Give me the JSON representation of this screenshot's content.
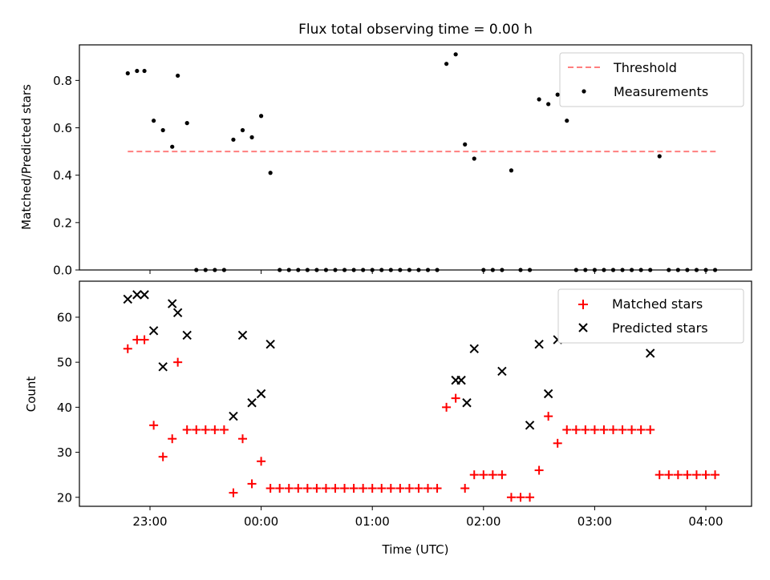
{
  "title": "Flux total observing time = 0.00 h",
  "chart_data": [
    {
      "type": "scatter",
      "panel": "top",
      "ylabel": "Matched/Predicted stars",
      "xlabel": "",
      "ylim": [
        0,
        0.95
      ],
      "yticks": [
        0.0,
        0.2,
        0.4,
        0.6,
        0.8
      ],
      "ytick_labels": [
        "0.0",
        "0.2",
        "0.4",
        "0.6",
        "0.8"
      ],
      "legend_position": "top-right",
      "grid": false,
      "threshold": {
        "name": "Threshold",
        "value": 0.5,
        "x_start": "22:48",
        "x_end": "04:07",
        "color": "#ff7f7f"
      },
      "series": [
        {
          "name": "Measurements",
          "color": "#000000",
          "marker": "dot",
          "x": [
            "22:48",
            "22:53",
            "22:57",
            "23:02",
            "23:07",
            "23:12",
            "23:15",
            "23:20",
            "23:25",
            "23:30",
            "23:35",
            "23:40",
            "23:45",
            "23:50",
            "23:55",
            "00:00",
            "00:05",
            "00:10",
            "00:15",
            "00:20",
            "00:25",
            "00:30",
            "00:35",
            "00:40",
            "00:45",
            "00:50",
            "00:55",
            "01:00",
            "01:05",
            "01:10",
            "01:15",
            "01:20",
            "01:25",
            "01:30",
            "01:35",
            "01:40",
            "01:45",
            "01:50",
            "01:55",
            "02:00",
            "02:05",
            "02:10",
            "02:15",
            "02:20",
            "02:25",
            "02:30",
            "02:35",
            "02:40",
            "02:45",
            "02:50",
            "02:55",
            "03:00",
            "03:05",
            "03:10",
            "03:15",
            "03:20",
            "03:25",
            "03:30",
            "03:35",
            "03:40",
            "03:45",
            "03:50",
            "03:55",
            "04:00",
            "04:05"
          ],
          "y": [
            0.83,
            0.84,
            0.84,
            0.63,
            0.59,
            0.52,
            0.82,
            0.62,
            0.0,
            0.0,
            0.0,
            0.0,
            0.55,
            0.59,
            0.56,
            0.65,
            0.41,
            0.0,
            0.0,
            0.0,
            0.0,
            0.0,
            0.0,
            0.0,
            0.0,
            0.0,
            0.0,
            0.0,
            0.0,
            0.0,
            0.0,
            0.0,
            0.0,
            0.0,
            0.0,
            0.87,
            0.91,
            0.53,
            0.47,
            0.0,
            0.0,
            0.0,
            0.42,
            0.0,
            0.0,
            0.72,
            0.7,
            0.74,
            0.63,
            0.0,
            0.0,
            0.0,
            0.0,
            0.0,
            0.0,
            0.0,
            0.0,
            0.0,
            0.48,
            0.0,
            0.0,
            0.0,
            0.0,
            0.0,
            0.0
          ]
        }
      ]
    },
    {
      "type": "scatter",
      "panel": "bottom",
      "xlabel": "Time (UTC)",
      "ylabel": "Count",
      "ylim": [
        18,
        68
      ],
      "yticks": [
        20,
        30,
        40,
        50,
        60
      ],
      "ytick_labels": [
        "20",
        "30",
        "40",
        "50",
        "60"
      ],
      "xticks": [
        "23:00",
        "00:00",
        "01:00",
        "02:00",
        "03:00",
        "04:00"
      ],
      "legend_position": "top-right",
      "grid": false,
      "series": [
        {
          "name": "Matched stars",
          "color": "#ff0000",
          "marker": "plus",
          "x": [
            "22:48",
            "22:53",
            "22:57",
            "23:02",
            "23:07",
            "23:12",
            "23:15",
            "23:20",
            "23:25",
            "23:30",
            "23:35",
            "23:40",
            "23:45",
            "23:50",
            "23:55",
            "00:00",
            "00:05",
            "00:10",
            "00:15",
            "00:20",
            "00:25",
            "00:30",
            "00:35",
            "00:40",
            "00:45",
            "00:50",
            "00:55",
            "01:00",
            "01:05",
            "01:10",
            "01:15",
            "01:20",
            "01:25",
            "01:30",
            "01:35",
            "01:40",
            "01:45",
            "01:50",
            "01:55",
            "02:00",
            "02:05",
            "02:10",
            "02:15",
            "02:20",
            "02:25",
            "02:30",
            "02:35",
            "02:40",
            "02:45",
            "02:50",
            "02:55",
            "03:00",
            "03:05",
            "03:10",
            "03:15",
            "03:20",
            "03:25",
            "03:30",
            "03:35",
            "03:40",
            "03:45",
            "03:50",
            "03:55",
            "04:00",
            "04:05"
          ],
          "y": [
            53,
            55,
            55,
            36,
            29,
            33,
            50,
            35,
            35,
            35,
            35,
            35,
            21,
            33,
            23,
            28,
            22,
            22,
            22,
            22,
            22,
            22,
            22,
            22,
            22,
            22,
            22,
            22,
            22,
            22,
            22,
            22,
            22,
            22,
            22,
            40,
            42,
            22,
            25,
            25,
            25,
            25,
            20,
            20,
            20,
            26,
            38,
            32,
            35,
            35,
            35,
            35,
            35,
            35,
            35,
            35,
            35,
            35,
            25,
            25,
            25,
            25,
            25,
            25,
            25
          ]
        },
        {
          "name": "Predicted stars",
          "color": "#000000",
          "marker": "x",
          "x": [
            "22:48",
            "22:53",
            "22:57",
            "23:02",
            "23:07",
            "23:12",
            "23:15",
            "23:20",
            "23:45",
            "23:50",
            "23:55",
            "00:00",
            "00:05",
            "01:45",
            "01:48",
            "01:51",
            "01:55",
            "02:10",
            "02:25",
            "02:30",
            "02:35",
            "02:40",
            "03:30"
          ],
          "y": [
            64,
            65,
            65,
            57,
            49,
            63,
            61,
            56,
            38,
            56,
            41,
            43,
            54,
            46,
            46,
            41,
            53,
            48,
            36,
            54,
            43,
            55,
            52
          ]
        }
      ]
    }
  ]
}
